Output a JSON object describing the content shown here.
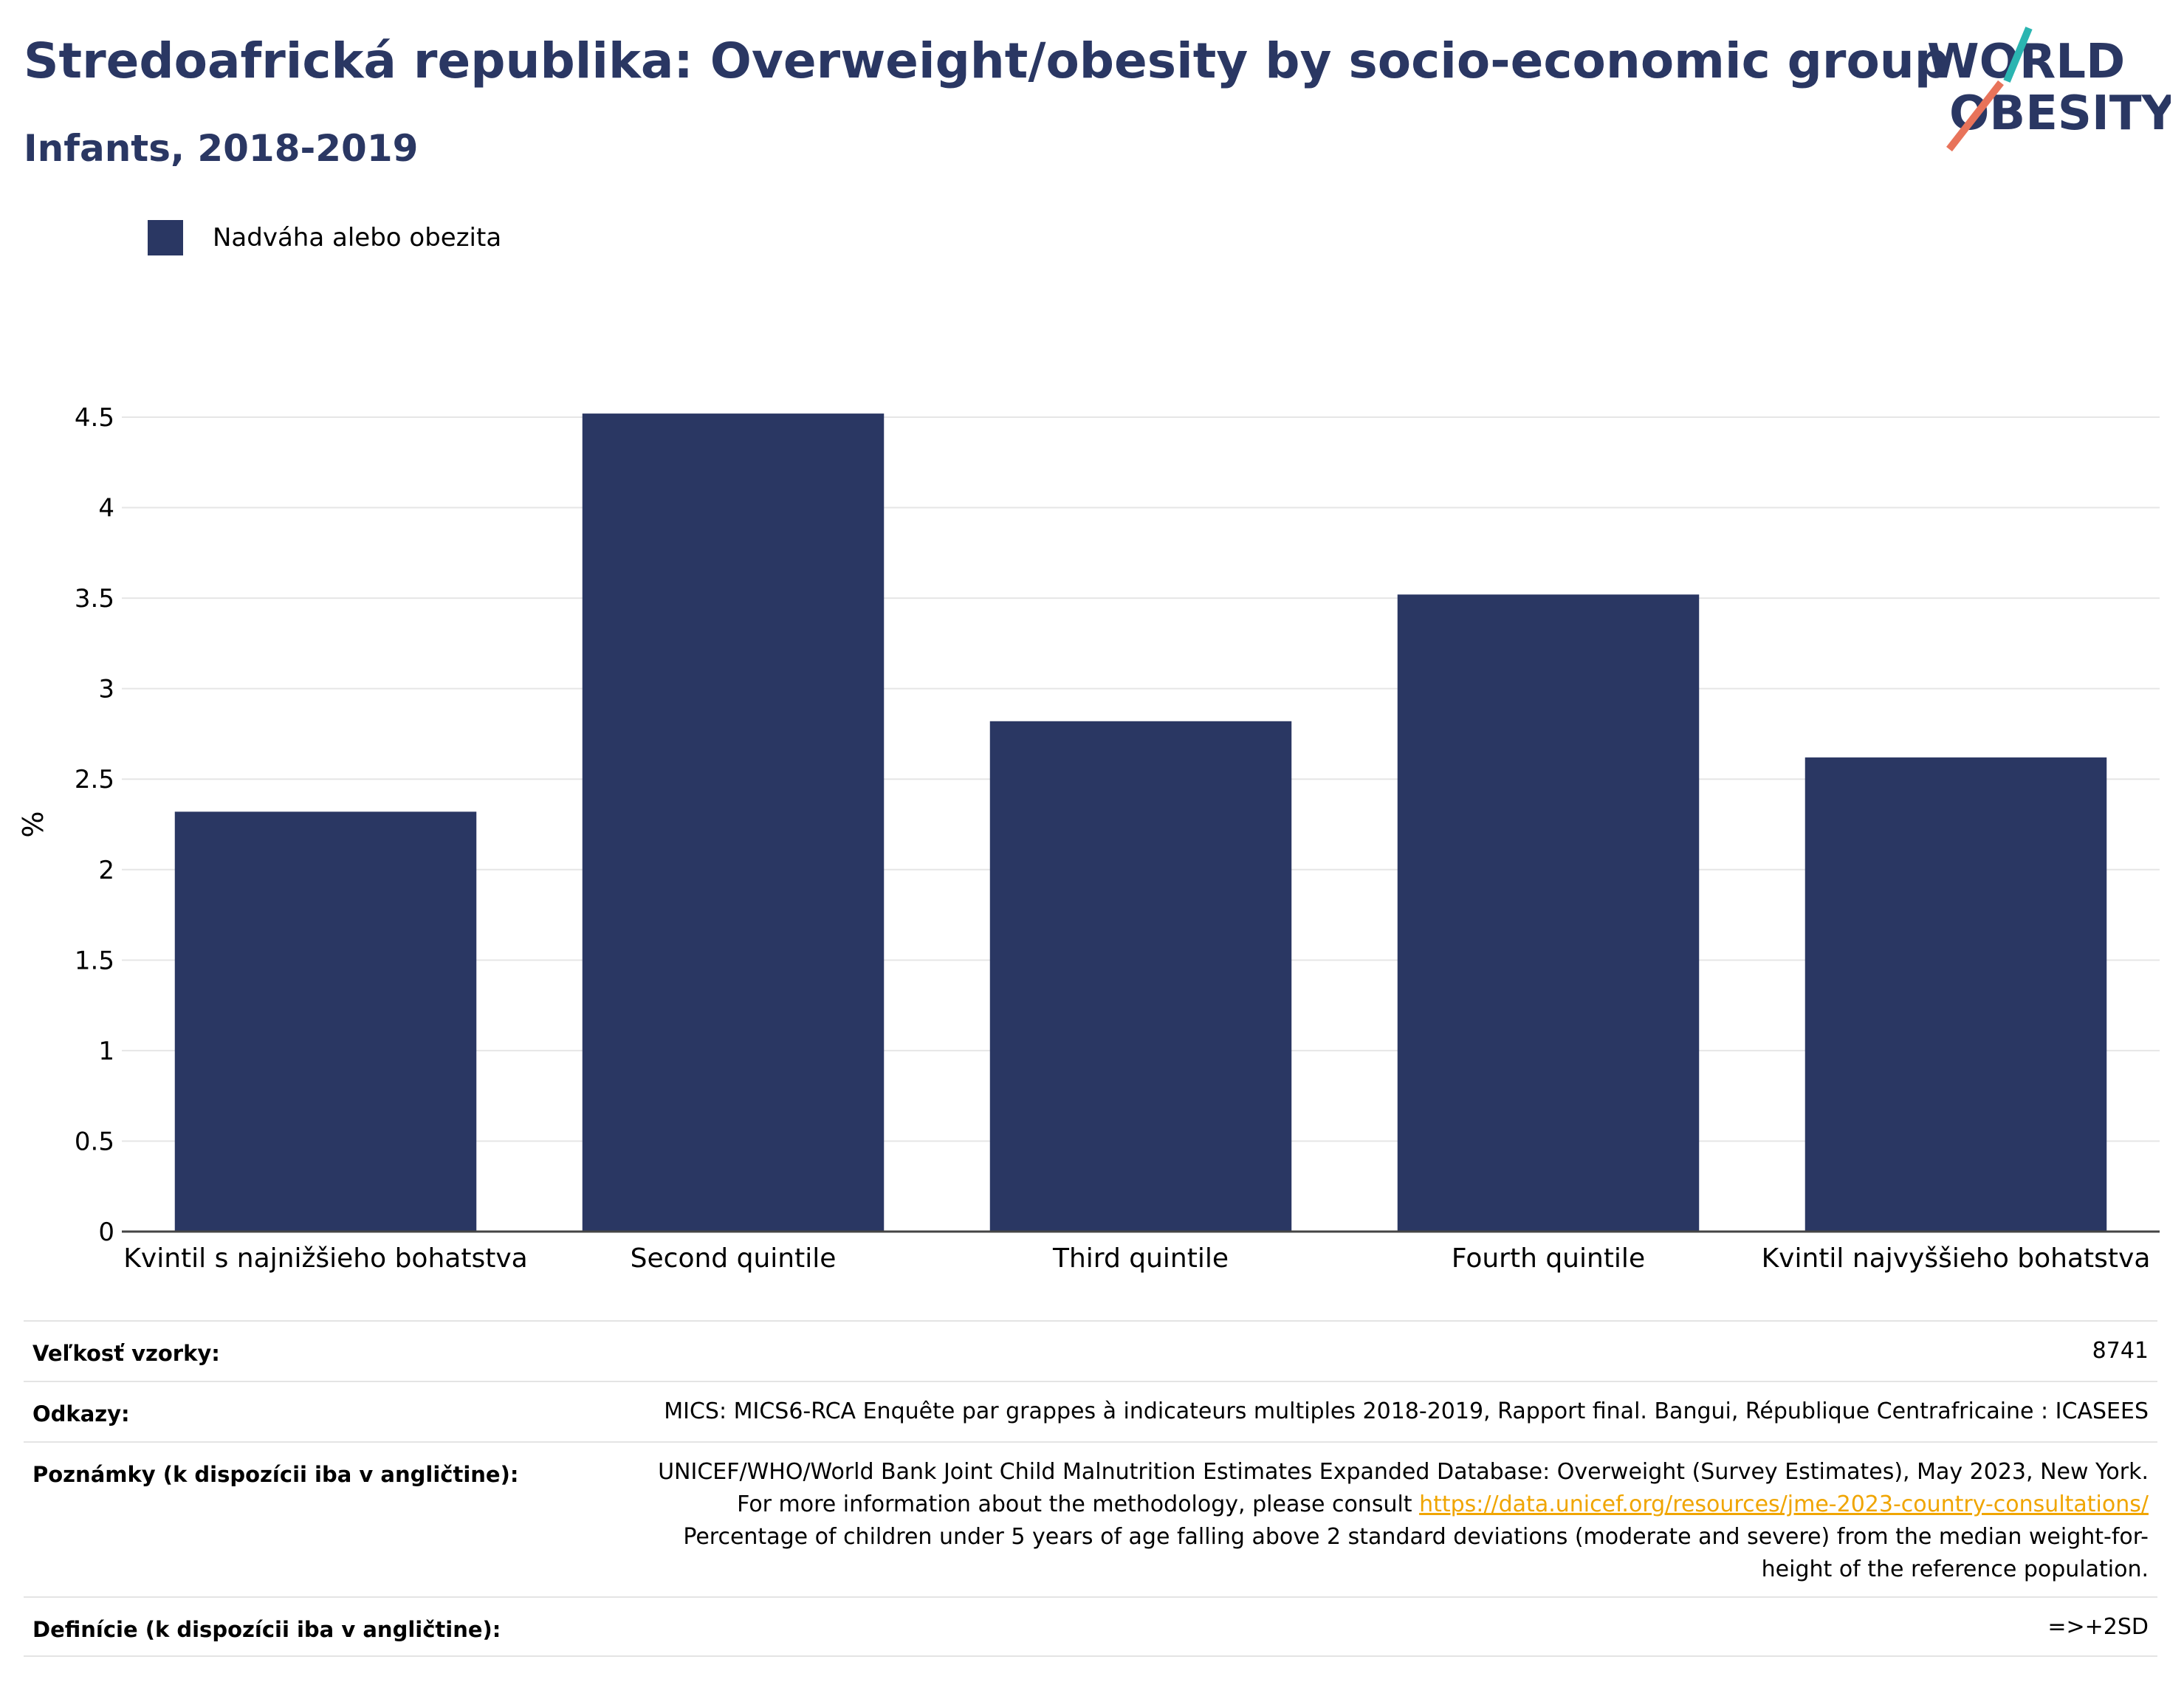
{
  "header": {
    "title": "Stredoafrická republika: Overweight/obesity by socio-economic group",
    "subtitle": "Infants, 2018-2019"
  },
  "logo": {
    "line1": "WORLD",
    "line2": "OBESITY",
    "accent_teal": "#2bb5b1",
    "accent_coral": "#e8735a"
  },
  "legend": {
    "label": "Nadváha alebo obezita",
    "color": "#2a3763"
  },
  "chart_data": {
    "type": "bar",
    "categories": [
      "Kvintil s najnižšieho bohatstva",
      "Second quintile",
      "Third quintile",
      "Fourth quintile",
      "Kvintil najvyššieho bohatstva"
    ],
    "series": [
      {
        "name": "Nadváha alebo obezita",
        "values": [
          2.32,
          4.52,
          2.82,
          3.52,
          2.62
        ],
        "color": "#2a3763"
      }
    ],
    "ylabel": "%",
    "ylim": [
      0,
      4.5
    ],
    "yticks": [
      "0",
      "0.5",
      "1",
      "1.5",
      "2",
      "2.5",
      "3",
      "3.5",
      "4",
      "4.5"
    ],
    "grid": true,
    "legend_position": "top-left"
  },
  "meta": {
    "sample_label": "Veľkosť vzorky:",
    "sample_value": "8741",
    "refs_label": "Odkazy:",
    "refs_value": "MICS: MICS6-RCA Enquête par grappes à indicateurs multiples 2018-2019, Rapport final. Bangui, République Centrafricaine : ICASEES",
    "notes_label": "Poznámky (k dispozícii iba v angličtine):",
    "notes_text1": "UNICEF/WHO/World Bank Joint Child Malnutrition Estimates Expanded Database: Overweight (Survey Estimates), May 2023, New York. For more information about the methodology, please consult ",
    "notes_link": "https://data.unicef.org/resources/jme-2023-country-consultations/",
    "notes_text2": "Percentage of children under 5 years of age falling above 2 standard deviations (moderate and severe) from the median weight-for-height of the reference population.",
    "defs_label": "Definície (k dispozícii iba v angličtine):",
    "defs_value": "=>+2SD"
  }
}
